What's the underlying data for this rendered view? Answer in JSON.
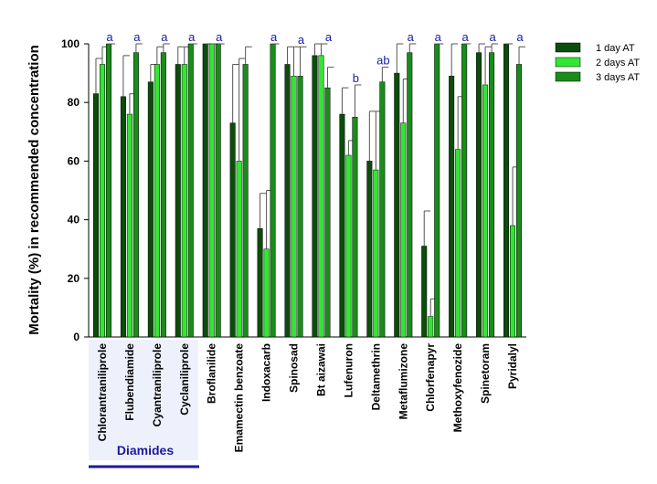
{
  "chart_data": {
    "type": "bar",
    "y_label": "Mortality (%) in recommended concentration",
    "categories": [
      "Chlorantraniliprole",
      "Flubendiamide",
      "Cyantraniliprole",
      "Cyclaniliprole",
      "Broflanilide",
      "Emamectin benzoate",
      "Indoxacarb",
      "Spinosad",
      "Bt aizawai",
      "Lufenuron",
      "Deltamethrin",
      "Metaflumizone",
      "Chlorfenapyr",
      "Methoxyfenozide",
      "Spinetoram",
      "Pyridalyl"
    ],
    "series": [
      {
        "name": "1 day AT",
        "color": "#0b4d0b",
        "values": [
          83,
          82,
          87,
          93,
          100,
          73,
          37,
          93,
          96,
          76,
          60,
          90,
          31,
          89,
          97,
          100
        ],
        "errors": [
          12,
          14,
          6,
          6,
          0,
          20,
          12,
          6,
          4,
          9,
          17,
          10,
          12,
          11,
          3,
          0
        ]
      },
      {
        "name": "2 days AT",
        "color": "#33e633",
        "values": [
          93,
          76,
          93,
          93,
          100,
          60,
          30,
          89,
          96,
          62,
          57,
          73,
          7,
          64,
          86,
          38
        ],
        "errors": [
          6,
          7,
          6,
          6,
          0,
          35,
          20,
          10,
          4,
          5,
          20,
          15,
          6,
          18,
          13,
          20
        ]
      },
      {
        "name": "3 days AT",
        "color": "#1a8c1a",
        "values": [
          100,
          97,
          97,
          100,
          100,
          93,
          100,
          89,
          85,
          75,
          87,
          97,
          100,
          100,
          97,
          93
        ],
        "errors": [
          0,
          3,
          3,
          0,
          0,
          6,
          0,
          10,
          7,
          11,
          5,
          3,
          0,
          0,
          3,
          6
        ]
      }
    ],
    "letters": [
      "a",
      "a",
      "a",
      "a",
      "a",
      null,
      "a",
      "a",
      "a",
      "b",
      "ab",
      "a",
      "a",
      "a",
      "a",
      "a"
    ],
    "group_label": "Diamides",
    "ylim": [
      0,
      100
    ],
    "yticks": [
      0,
      20,
      40,
      60,
      80,
      100
    ],
    "legend": "top-right"
  }
}
